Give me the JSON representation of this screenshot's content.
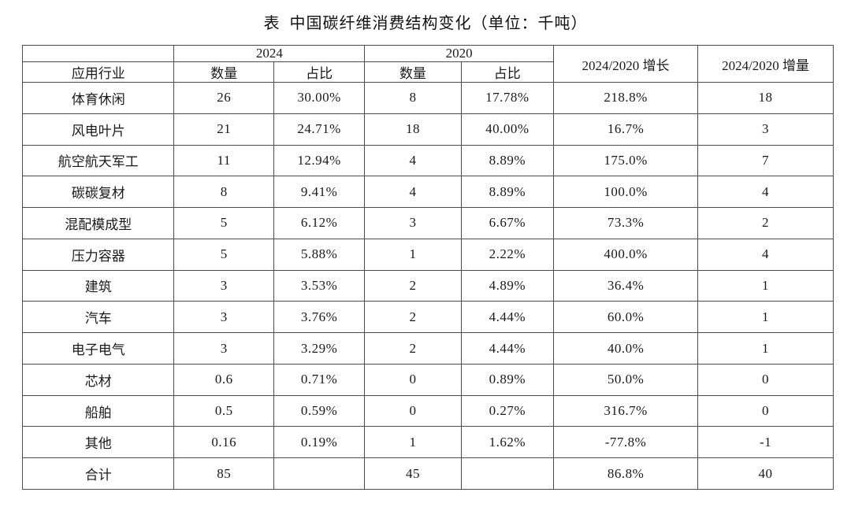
{
  "page": {
    "background_color": "#ffffff",
    "text_color": "#1a1a1a",
    "border_color": "#4c4c4c"
  },
  "title": "表  中国碳纤维消费结构变化（单位：千吨）",
  "table": {
    "columns": {
      "industry": "应用行业",
      "year_2024": "2024",
      "year_2020": "2020",
      "quantity": "数量",
      "share": "占比",
      "growth": "2024/2020 增长",
      "increment": "2024/2020 增量"
    },
    "rows": [
      {
        "industry": "体育休闲",
        "qty_2024": "26",
        "share_2024": "30.00%",
        "qty_2020": "8",
        "share_2020": "17.78%",
        "growth": "218.8%",
        "increment": "18"
      },
      {
        "industry": "风电叶片",
        "qty_2024": "21",
        "share_2024": "24.71%",
        "qty_2020": "18",
        "share_2020": "40.00%",
        "growth": "16.7%",
        "increment": "3"
      },
      {
        "industry": "航空航天军工",
        "qty_2024": "11",
        "share_2024": "12.94%",
        "qty_2020": "4",
        "share_2020": "8.89%",
        "growth": "175.0%",
        "increment": "7"
      },
      {
        "industry": "碳碳复材",
        "qty_2024": "8",
        "share_2024": "9.41%",
        "qty_2020": "4",
        "share_2020": "8.89%",
        "growth": "100.0%",
        "increment": "4"
      },
      {
        "industry": "混配模成型",
        "qty_2024": "5",
        "share_2024": "6.12%",
        "qty_2020": "3",
        "share_2020": "6.67%",
        "growth": "73.3%",
        "increment": "2"
      },
      {
        "industry": "压力容器",
        "qty_2024": "5",
        "share_2024": "5.88%",
        "qty_2020": "1",
        "share_2020": "2.22%",
        "growth": "400.0%",
        "increment": "4"
      },
      {
        "industry": "建筑",
        "qty_2024": "3",
        "share_2024": "3.53%",
        "qty_2020": "2",
        "share_2020": "4.89%",
        "growth": "36.4%",
        "increment": "1"
      },
      {
        "industry": "汽车",
        "qty_2024": "3",
        "share_2024": "3.76%",
        "qty_2020": "2",
        "share_2020": "4.44%",
        "growth": "60.0%",
        "increment": "1"
      },
      {
        "industry": "电子电气",
        "qty_2024": "3",
        "share_2024": "3.29%",
        "qty_2020": "2",
        "share_2020": "4.44%",
        "growth": "40.0%",
        "increment": "1"
      },
      {
        "industry": "芯材",
        "qty_2024": "0.6",
        "share_2024": "0.71%",
        "qty_2020": "0",
        "share_2020": "0.89%",
        "growth": "50.0%",
        "increment": "0"
      },
      {
        "industry": "船舶",
        "qty_2024": "0.5",
        "share_2024": "0.59%",
        "qty_2020": "0",
        "share_2020": "0.27%",
        "growth": "316.7%",
        "increment": "0"
      },
      {
        "industry": "其他",
        "qty_2024": "0.16",
        "share_2024": "0.19%",
        "qty_2020": "1",
        "share_2020": "1.62%",
        "growth": "-77.8%",
        "increment": "-1"
      }
    ],
    "total_row": {
      "industry": "合计",
      "qty_2024": "85",
      "share_2024": "",
      "qty_2020": "45",
      "share_2020": "",
      "growth": "86.8%",
      "increment": "40"
    }
  }
}
